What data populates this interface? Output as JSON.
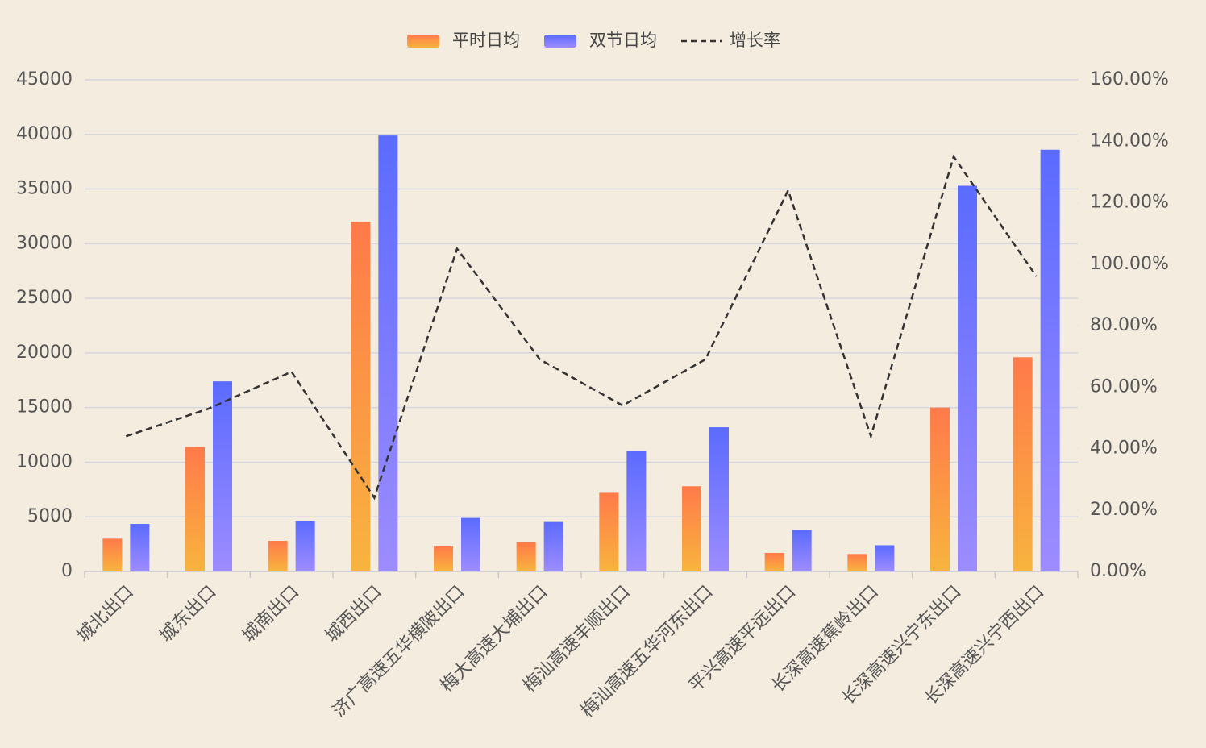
{
  "chart_data": {
    "type": "bar",
    "categories": [
      "城北出口",
      "城东出口",
      "城南出口",
      "城西出口",
      "济广高速五华横陂出口",
      "梅大高速大埔出口",
      "梅汕高速丰顺出口",
      "梅汕高速五华河东出口",
      "平兴高速平远出口",
      "长深高速蕉岭出口",
      "长深高速兴宁东出口",
      "长深高速兴宁西出口"
    ],
    "series": [
      {
        "name": "平时日均",
        "type": "bar",
        "color": "#ff7a4a",
        "gradient": [
          "#ff7a4a",
          "#f8b43e"
        ],
        "values": [
          3000,
          11400,
          2800,
          32000,
          2300,
          2700,
          7200,
          7800,
          1700,
          1600,
          15000,
          19600
        ]
      },
      {
        "name": "双节日均",
        "type": "bar",
        "color": "#5b6bff",
        "gradient": [
          "#5b6bff",
          "#9d8cff"
        ],
        "values": [
          4350,
          17400,
          4650,
          39900,
          4900,
          4600,
          11000,
          13200,
          3800,
          2400,
          35300,
          38600
        ]
      },
      {
        "name": "增长率",
        "type": "line",
        "axis": "y2",
        "color": "#333333",
        "dashed": true,
        "values": [
          44,
          53,
          65,
          24,
          105,
          69,
          54,
          69,
          124,
          44,
          135,
          96
        ]
      }
    ],
    "ylim": [
      0,
      45000
    ],
    "yticks": [
      0,
      5000,
      10000,
      15000,
      20000,
      25000,
      30000,
      35000,
      40000,
      45000
    ],
    "y2lim": [
      0,
      160
    ],
    "y2ticks": [
      {
        "value": 0,
        "label": "0.00%"
      },
      {
        "value": 20,
        "label": "20.00%"
      },
      {
        "value": 40,
        "label": "40.00%"
      },
      {
        "value": 60,
        "label": "60.00%"
      },
      {
        "value": 80,
        "label": "80.00%"
      },
      {
        "value": 100,
        "label": "100.00%"
      },
      {
        "value": 120,
        "label": "120.00%"
      },
      {
        "value": 140,
        "label": "140.00%"
      },
      {
        "value": 160,
        "label": "160.00%"
      }
    ],
    "grid": true,
    "legend": "top"
  }
}
